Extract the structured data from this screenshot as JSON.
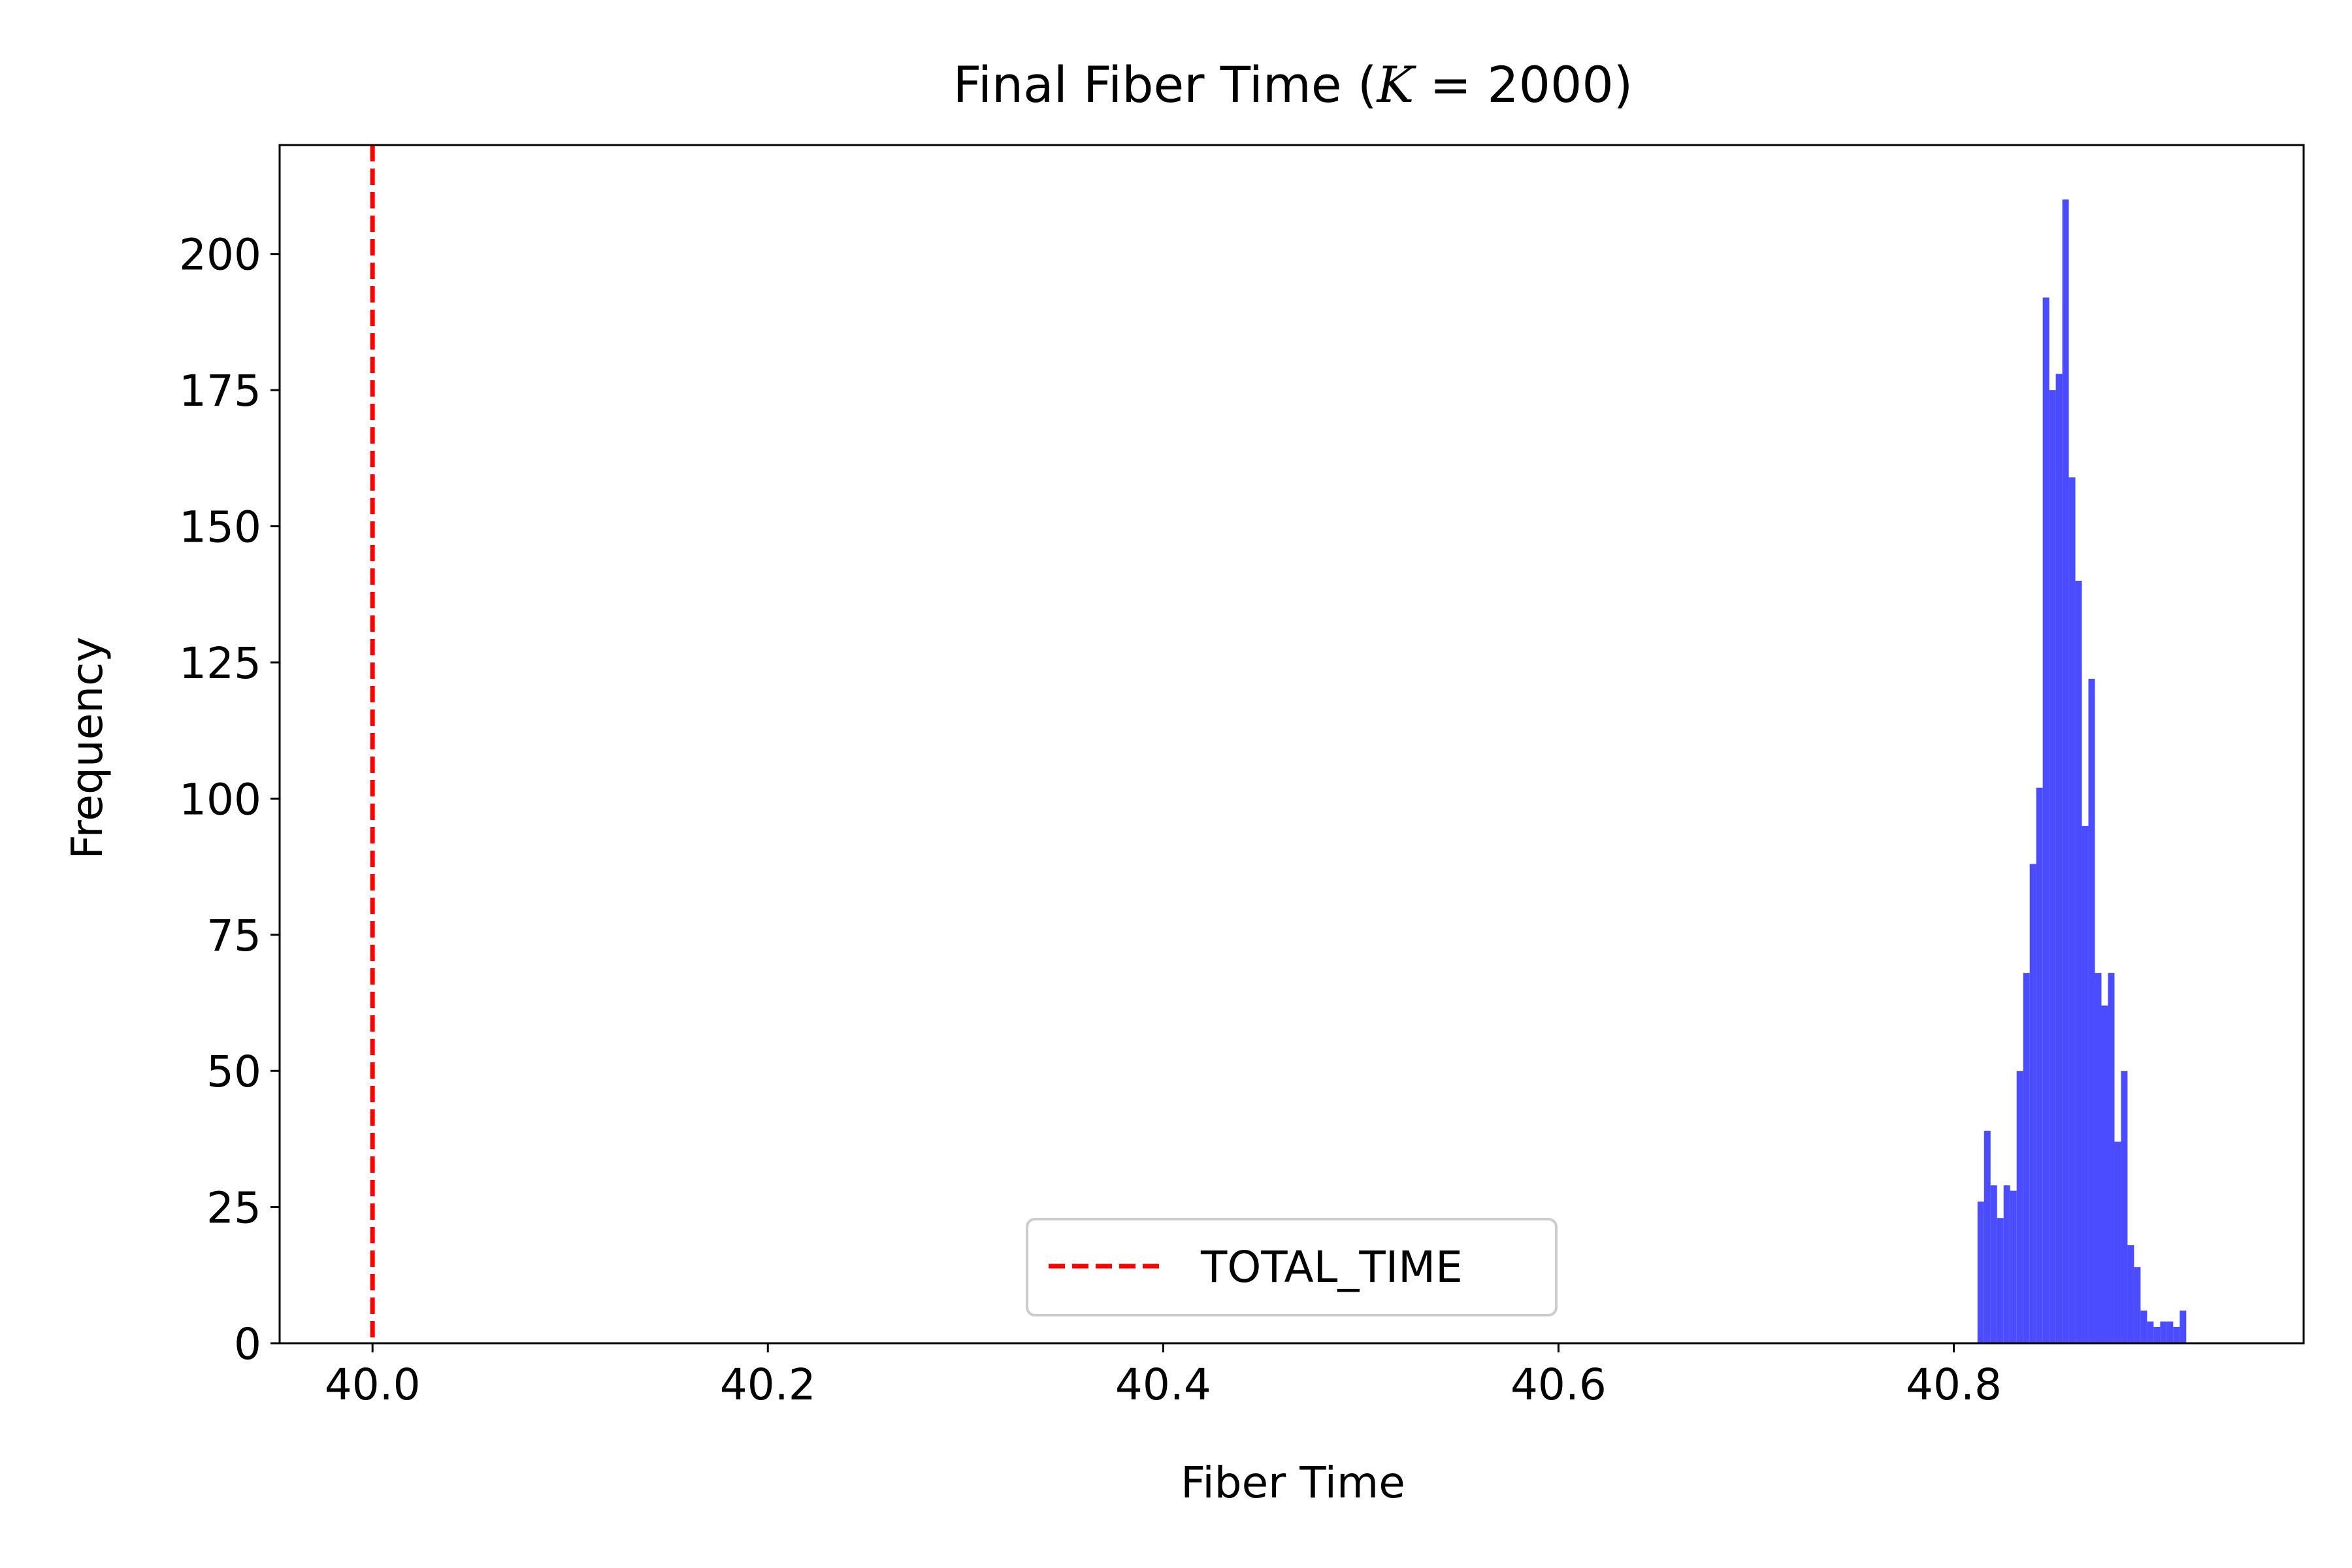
{
  "chart_data": {
    "type": "bar",
    "title": "Final Fiber Time (",
    "title_var": "K",
    "title_rest": " = 2000)",
    "xlabel": "Fiber Time",
    "ylabel": "Frequency",
    "xlim": [
      39.953,
      40.977
    ],
    "ylim": [
      0,
      220
    ],
    "xticks": [
      "40.0",
      "40.2",
      "40.4",
      "40.6",
      "40.8"
    ],
    "xtick_values": [
      40.0,
      40.2,
      40.4,
      40.6,
      40.8
    ],
    "yticks": [
      "0",
      "25",
      "50",
      "75",
      "100",
      "125",
      "150",
      "175",
      "200"
    ],
    "ytick_values": [
      0,
      25,
      50,
      75,
      100,
      125,
      150,
      175,
      200
    ],
    "grid": false,
    "bar_color": "#4B4BFF",
    "series": [
      {
        "bin_start": 40.812,
        "bin_width": 0.0033,
        "values": [
          26,
          39,
          29,
          23,
          29,
          28,
          50,
          68,
          88,
          102,
          192,
          175,
          178,
          210,
          159,
          140,
          95,
          122,
          68,
          62,
          68,
          37,
          50,
          18,
          14,
          6,
          4,
          3,
          4,
          4,
          3,
          6
        ]
      }
    ],
    "reference_line": {
      "x": 40.0,
      "color": "#FF0000",
      "style": "dashed",
      "label": "TOTAL_TIME"
    },
    "legend": {
      "position": "lower-center",
      "entries": [
        "TOTAL_TIME"
      ]
    }
  }
}
